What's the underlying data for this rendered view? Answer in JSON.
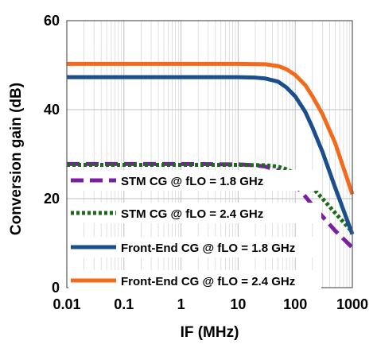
{
  "chart_data": {
    "type": "line",
    "xlabel": "IF (MHz)",
    "ylabel": "Conversion gain (dB)",
    "xscale": "log",
    "xlim": [
      0.01,
      1000
    ],
    "ylim": [
      0,
      60
    ],
    "grid": "vertical minor + horizontal major",
    "legend_position": "bottom-left inside",
    "x_ticks": [
      "0.01",
      "0.1",
      "1",
      "10",
      "100",
      "1000"
    ],
    "y_ticks": [
      "0",
      "20",
      "40",
      "60"
    ],
    "series": [
      {
        "name": "STM CG @ fLO = 1.8 GHz",
        "color": "#7b1fa2",
        "style": "dashed",
        "points": [
          [
            0.01,
            27.8
          ],
          [
            1,
            27.8
          ],
          [
            10,
            27.7
          ],
          [
            20,
            27.5
          ],
          [
            30,
            27.2
          ],
          [
            50,
            26.3
          ],
          [
            70,
            25.0
          ],
          [
            100,
            23.0
          ],
          [
            150,
            20.5
          ],
          [
            200,
            18.5
          ],
          [
            300,
            16.0
          ],
          [
            500,
            12.8
          ],
          [
            1000,
            9.0
          ]
        ]
      },
      {
        "name": "STM CG @ fLO = 2.4 GHz",
        "color": "#1b6b1b",
        "style": "dotted",
        "points": [
          [
            0.01,
            27.6
          ],
          [
            1,
            27.6
          ],
          [
            10,
            27.6
          ],
          [
            30,
            27.5
          ],
          [
            50,
            27.2
          ],
          [
            70,
            26.6
          ],
          [
            100,
            25.6
          ],
          [
            150,
            24.0
          ],
          [
            200,
            22.5
          ],
          [
            300,
            20.0
          ],
          [
            500,
            16.8
          ],
          [
            1000,
            12.5
          ]
        ]
      },
      {
        "name": "Front-End CG @ fLO = 1.8 GHz",
        "color": "#1a4f8c",
        "style": "solid",
        "points": [
          [
            0.01,
            47.3
          ],
          [
            1,
            47.3
          ],
          [
            10,
            47.3
          ],
          [
            20,
            47.2
          ],
          [
            30,
            47.0
          ],
          [
            50,
            46.3
          ],
          [
            70,
            45.0
          ],
          [
            100,
            43.0
          ],
          [
            150,
            39.5
          ],
          [
            200,
            36.0
          ],
          [
            300,
            30.5
          ],
          [
            500,
            22.5
          ],
          [
            1000,
            12.0
          ]
        ]
      },
      {
        "name": "Front-End CG @ fLO = 2.4 GHz",
        "color": "#f26b1d",
        "style": "solid",
        "points": [
          [
            0.01,
            50.3
          ],
          [
            1,
            50.3
          ],
          [
            10,
            50.3
          ],
          [
            30,
            50.2
          ],
          [
            50,
            49.8
          ],
          [
            70,
            49.1
          ],
          [
            100,
            47.8
          ],
          [
            150,
            45.5
          ],
          [
            200,
            43.0
          ],
          [
            300,
            39.0
          ],
          [
            500,
            32.5
          ],
          [
            1000,
            21.0
          ]
        ]
      }
    ]
  }
}
